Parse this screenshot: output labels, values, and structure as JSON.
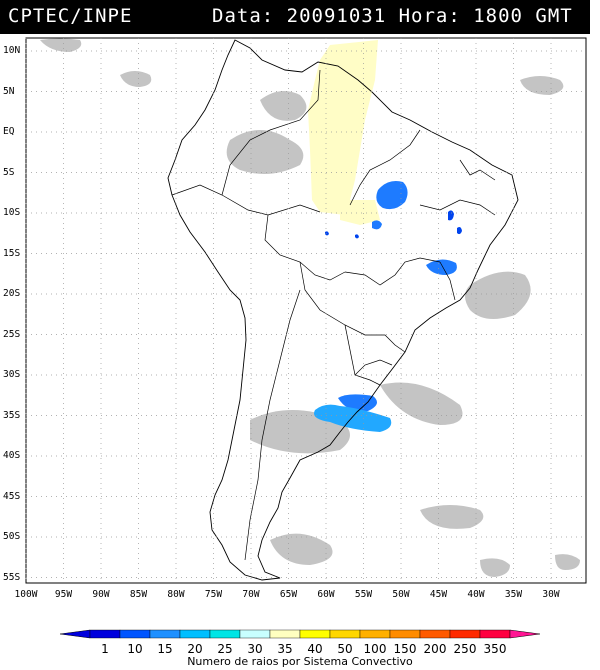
{
  "header": {
    "source": "CPTEC/INPE",
    "timestamp": "Data: 20091031 Hora: 1800 GMT"
  },
  "map": {
    "lat_labels": [
      "10N",
      "5N",
      "EQ",
      "5S",
      "10S",
      "15S",
      "20S",
      "25S",
      "30S",
      "35S",
      "40S",
      "45S",
      "50S",
      "55S"
    ],
    "lon_labels": [
      "100W",
      "95W",
      "90W",
      "85W",
      "80W",
      "75W",
      "70W",
      "65W",
      "60W",
      "55W",
      "50W",
      "45W",
      "40W",
      "35W",
      "30W"
    ]
  },
  "legend": {
    "ticks": [
      "1",
      "10",
      "15",
      "20",
      "25",
      "30",
      "35",
      "40",
      "50",
      "100",
      "150",
      "200",
      "250",
      "350"
    ],
    "colors": [
      "#0000dd",
      "#0055ff",
      "#1e90ff",
      "#00bfff",
      "#00e5e5",
      "#c8ffff",
      "#ffffc0",
      "#ffff00",
      "#ffd700",
      "#ffb000",
      "#ff8c00",
      "#ff5a00",
      "#ff2a00",
      "#ff0040"
    ],
    "caption": "Numero de raios por Sistema Convectivo"
  }
}
